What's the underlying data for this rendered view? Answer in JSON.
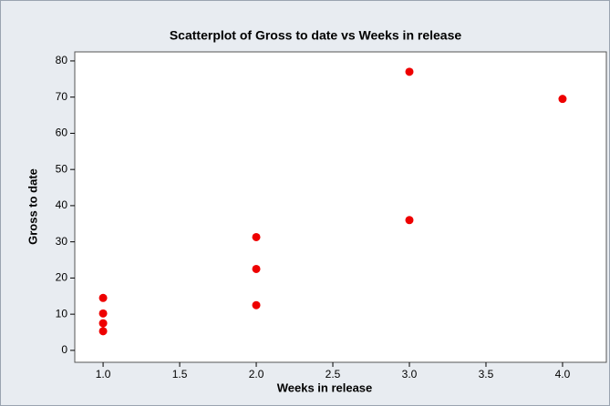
{
  "chart_data": {
    "type": "scatter",
    "title": "Scatterplot of Gross to date vs Weeks in release",
    "xlabel": "Weeks in release",
    "ylabel": "Gross to date",
    "x": [
      1,
      1,
      1,
      1,
      2,
      2,
      2,
      3,
      3,
      4
    ],
    "y": [
      14.5,
      10.2,
      7.5,
      5.3,
      31.3,
      22.5,
      12.5,
      77,
      36,
      69.5
    ],
    "color": "#ee0000",
    "xlim": [
      0.815,
      4.286
    ],
    "ylim": [
      -3.3,
      82.5
    ],
    "xticks": [
      {
        "value": 1,
        "label": "1.0"
      },
      {
        "value": 1.5,
        "label": "1.5"
      },
      {
        "value": 2,
        "label": "2.0"
      },
      {
        "value": 2.5,
        "label": "2.5"
      },
      {
        "value": 3,
        "label": "3.0"
      },
      {
        "value": 3.5,
        "label": "3.5"
      },
      {
        "value": 4,
        "label": "4.0"
      }
    ],
    "yticks": [
      0,
      10,
      20,
      30,
      40,
      50,
      60,
      70,
      80
    ]
  }
}
